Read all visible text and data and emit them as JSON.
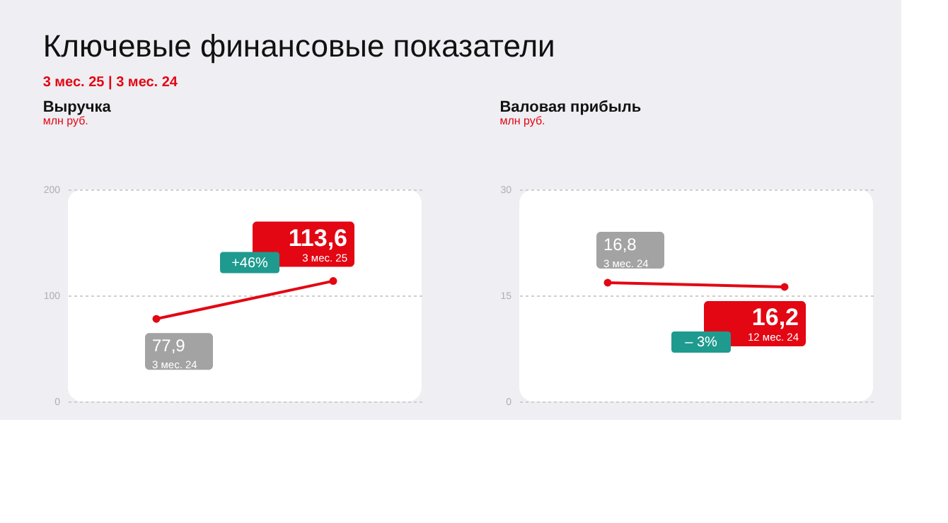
{
  "chart_data": [
    {
      "type": "line",
      "title": "Выручка",
      "ylabel": "млн руб.",
      "categories": [
        "3 мес. 24",
        "3 мес. 25"
      ],
      "values": [
        77.9,
        113.6
      ],
      "value_labels": [
        "77,9",
        "113,6"
      ],
      "color": "#e30613",
      "ylim": [
        0,
        200
      ],
      "yticks": [
        0,
        100,
        200
      ],
      "grid": "y",
      "tick_labels": "y",
      "marker": "circle",
      "line_style": "solid",
      "annotations": [
        "Ключевые финансовые показатели",
        "3 мес. 25 | 3 мес. 24",
        "+46%"
      ]
    },
    {
      "type": "line",
      "title": "Валовая прибыль",
      "ylabel": "млн руб.",
      "categories": [
        "3 мес. 24",
        "12 мес. 24"
      ],
      "values": [
        16.8,
        16.2
      ],
      "value_labels": [
        "16,8",
        "16,2"
      ],
      "color": "#e30613",
      "ylim": [
        0,
        30
      ],
      "yticks": [
        0,
        15,
        30
      ],
      "grid": "y",
      "tick_labels": "y",
      "marker": "circle",
      "line_style": "solid",
      "annotations": [
        "– 3%"
      ]
    }
  ]
}
